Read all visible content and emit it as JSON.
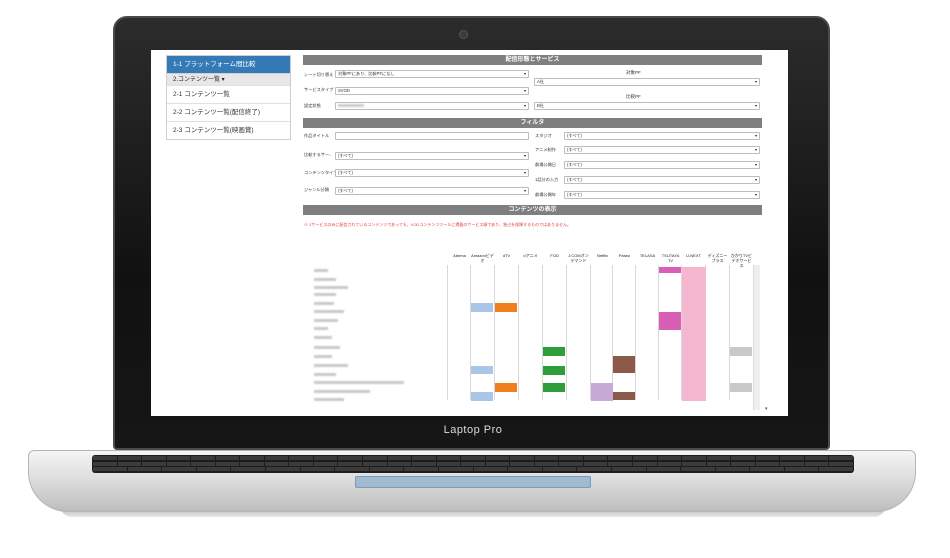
{
  "device": {
    "brand_label": "Laptop Pro"
  },
  "sidebar": {
    "active_item": "1-1 プラットフォーム間比較",
    "group_label": "2.コンテンツ一覧 ▾",
    "items": [
      {
        "label": "2-1 コンテンツ一覧"
      },
      {
        "label": "2-2 コンテンツ一覧(配信終了)"
      },
      {
        "label": "2-3 コンテンツ一覧(映画賞)"
      }
    ]
  },
  "sections": {
    "distribution": {
      "title": "配信形態とサービス",
      "sheet_switch_label": "シート切り替え",
      "sheet_switch_value": "対象PFにあり、比較PFになし",
      "service_type_label": "サービスタイプ",
      "service_type_value": "SVOD",
      "setting_label": "設定状態",
      "target_pf_label": "対象PF",
      "target_pf_value": "A社",
      "compare_pf_label": "比較PF",
      "compare_pf_value": "B社"
    },
    "filter": {
      "title": "フィルタ",
      "work_title_label": "作品タイトル",
      "compare_service_label": "比較するサー..",
      "content_type_label": "コンテンツタイプ",
      "genre_label": "ジャンル分類",
      "studio_label": "スタジオ",
      "anime_label": "アニメ制作",
      "release_date_label": "劇場公開日",
      "episode_label": "1話分の入力",
      "release_year_label": "劇場公開年",
      "all_option": "(すべて)"
    },
    "display": {
      "title": "コンテンツの表示",
      "note": "※ 1サービスのみに配信されているコンテンツであっても、VODコンテンツツールに掲載のサービス順であり、独占を保障するものではありません。"
    }
  },
  "grid": {
    "headers": [
      "Abema",
      "Amazonビデオ",
      "dTV",
      "dアニメ",
      "FOD",
      "J:COMオンデマンド",
      "Netflix",
      "Paravi",
      "TELASA",
      "TSUTAYA TV",
      "U-NEXT",
      "ディズニープラス",
      "ひかりTVビデオサービス"
    ]
  },
  "colors": {
    "sidebar_active": "#337ab7",
    "section_header": "#7f7f7f",
    "amazon": "#a9c6e8",
    "dtv": "#f07f1f",
    "fod": "#2e9e3b",
    "netflix": "#c7a9d6",
    "paravi": "#8c5a4a",
    "tsutaya": "#d95fb6",
    "unext": "#f5b7cf",
    "hikari": "#c9c9c9",
    "note_red": "#e23b3b"
  }
}
